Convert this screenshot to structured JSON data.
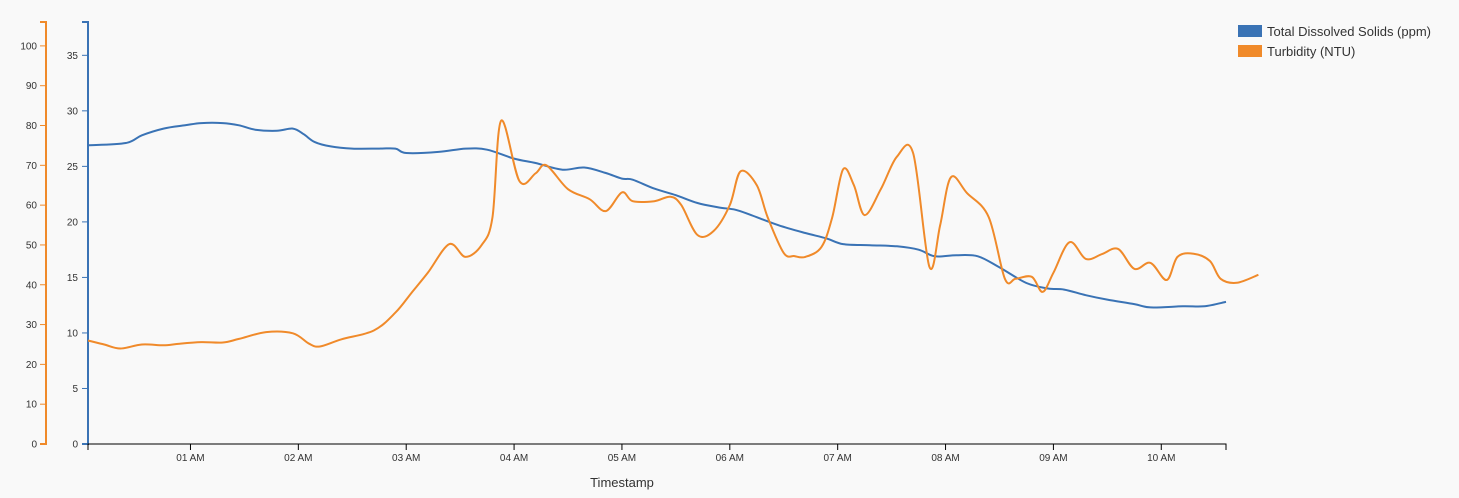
{
  "chart_data": {
    "type": "line",
    "xlabel": "Timestamp",
    "x_ticks": [
      "01 AM",
      "02 AM",
      "03 AM",
      "04 AM",
      "05 AM",
      "06 AM",
      "07 AM",
      "08 AM",
      "09 AM",
      "10 AM"
    ],
    "x_range_hours": [
      0.05,
      10.6
    ],
    "y_left_inner": {
      "ticks": [
        0,
        5,
        10,
        15,
        20,
        25,
        30,
        35
      ],
      "range": [
        0,
        38
      ],
      "color": "#3a73b5"
    },
    "y_left_outer": {
      "ticks": [
        0,
        10,
        20,
        30,
        40,
        50,
        60,
        70,
        80,
        90,
        100
      ],
      "range": [
        0,
        106
      ],
      "color": "#f08a2a"
    },
    "legend_position": "top-right",
    "series": [
      {
        "name": "Total Dissolved Solids (ppm)",
        "color": "#3a73b5",
        "axis": "inner",
        "points": [
          [
            0.05,
            26.9
          ],
          [
            0.4,
            27.1
          ],
          [
            0.55,
            27.8
          ],
          [
            0.75,
            28.4
          ],
          [
            0.95,
            28.7
          ],
          [
            1.1,
            28.9
          ],
          [
            1.3,
            28.9
          ],
          [
            1.45,
            28.7
          ],
          [
            1.6,
            28.3
          ],
          [
            1.8,
            28.2
          ],
          [
            1.95,
            28.4
          ],
          [
            2.05,
            27.9
          ],
          [
            2.15,
            27.2
          ],
          [
            2.3,
            26.8
          ],
          [
            2.5,
            26.6
          ],
          [
            2.75,
            26.6
          ],
          [
            2.9,
            26.6
          ],
          [
            3.0,
            26.2
          ],
          [
            3.3,
            26.3
          ],
          [
            3.55,
            26.6
          ],
          [
            3.75,
            26.5
          ],
          [
            4.0,
            25.7
          ],
          [
            4.2,
            25.3
          ],
          [
            4.45,
            24.7
          ],
          [
            4.65,
            24.9
          ],
          [
            4.85,
            24.4
          ],
          [
            5.0,
            23.9
          ],
          [
            5.1,
            23.8
          ],
          [
            5.3,
            23.0
          ],
          [
            5.5,
            22.4
          ],
          [
            5.7,
            21.7
          ],
          [
            5.9,
            21.3
          ],
          [
            6.05,
            21.1
          ],
          [
            6.2,
            20.6
          ],
          [
            6.45,
            19.7
          ],
          [
            6.7,
            19.0
          ],
          [
            6.9,
            18.5
          ],
          [
            7.05,
            18.0
          ],
          [
            7.3,
            17.9
          ],
          [
            7.55,
            17.8
          ],
          [
            7.75,
            17.5
          ],
          [
            7.9,
            16.9
          ],
          [
            8.1,
            17.0
          ],
          [
            8.3,
            16.9
          ],
          [
            8.5,
            15.9
          ],
          [
            8.75,
            14.5
          ],
          [
            8.95,
            14.0
          ],
          [
            9.1,
            13.9
          ],
          [
            9.3,
            13.4
          ],
          [
            9.5,
            13.0
          ],
          [
            9.75,
            12.6
          ],
          [
            9.9,
            12.3
          ],
          [
            10.2,
            12.4
          ],
          [
            10.4,
            12.4
          ],
          [
            10.6,
            12.8
          ]
        ]
      },
      {
        "name": "Turbidity (NTU)",
        "color": "#f08a2a",
        "axis": "outer",
        "points": [
          [
            0.05,
            26
          ],
          [
            0.2,
            25
          ],
          [
            0.35,
            24
          ],
          [
            0.55,
            25
          ],
          [
            0.75,
            24.8
          ],
          [
            0.9,
            25.2
          ],
          [
            1.1,
            25.6
          ],
          [
            1.3,
            25.5
          ],
          [
            1.45,
            26.4
          ],
          [
            1.7,
            28.1
          ],
          [
            1.95,
            27.8
          ],
          [
            2.1,
            25.2
          ],
          [
            2.2,
            24.5
          ],
          [
            2.4,
            26.3
          ],
          [
            2.7,
            28.5
          ],
          [
            2.9,
            33
          ],
          [
            3.05,
            38
          ],
          [
            3.2,
            43
          ],
          [
            3.4,
            50.2
          ],
          [
            3.55,
            47
          ],
          [
            3.7,
            50
          ],
          [
            3.8,
            57
          ],
          [
            3.88,
            81.2
          ],
          [
            4.05,
            66
          ],
          [
            4.2,
            68
          ],
          [
            4.3,
            70
          ],
          [
            4.5,
            64
          ],
          [
            4.7,
            61.5
          ],
          [
            4.85,
            58.5
          ],
          [
            5.0,
            63.2
          ],
          [
            5.1,
            61
          ],
          [
            5.3,
            61
          ],
          [
            5.45,
            62.1
          ],
          [
            5.55,
            60
          ],
          [
            5.7,
            52.5
          ],
          [
            5.85,
            53.5
          ],
          [
            6.0,
            60
          ],
          [
            6.1,
            68.5
          ],
          [
            6.25,
            65
          ],
          [
            6.35,
            57
          ],
          [
            6.5,
            48
          ],
          [
            6.6,
            47.2
          ],
          [
            6.7,
            47
          ],
          [
            6.85,
            49.5
          ],
          [
            6.95,
            57
          ],
          [
            7.05,
            69
          ],
          [
            7.15,
            65
          ],
          [
            7.25,
            57.5
          ],
          [
            7.4,
            64
          ],
          [
            7.55,
            72.2
          ],
          [
            7.7,
            73
          ],
          [
            7.85,
            44.5
          ],
          [
            7.95,
            55
          ],
          [
            8.05,
            67
          ],
          [
            8.2,
            63
          ],
          [
            8.4,
            57
          ],
          [
            8.55,
            41.5
          ],
          [
            8.65,
            41.5
          ],
          [
            8.8,
            42
          ],
          [
            8.9,
            38.2
          ],
          [
            9.0,
            43
          ],
          [
            9.15,
            50.7
          ],
          [
            9.3,
            46.5
          ],
          [
            9.45,
            47.7
          ],
          [
            9.6,
            49
          ],
          [
            9.75,
            44
          ],
          [
            9.9,
            45.5
          ],
          [
            10.05,
            41.2
          ],
          [
            10.15,
            47
          ],
          [
            10.3,
            47.8
          ],
          [
            10.45,
            46
          ],
          [
            10.55,
            41.5
          ],
          [
            10.7,
            40.5
          ],
          [
            10.9,
            42.5
          ]
        ]
      }
    ]
  }
}
